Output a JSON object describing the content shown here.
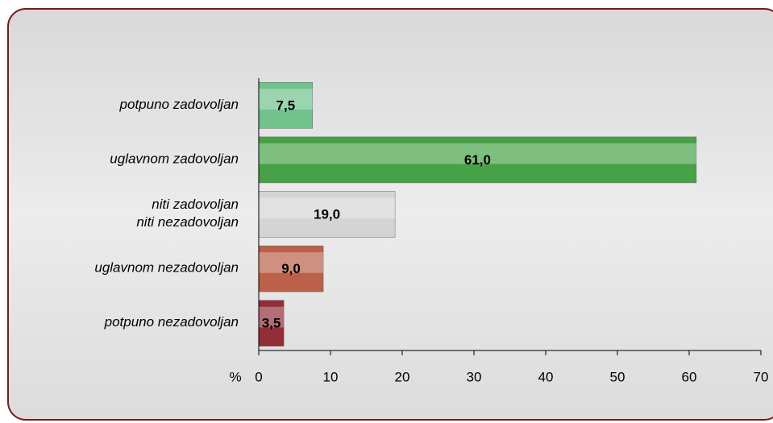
{
  "chart_data": {
    "type": "bar",
    "orientation": "horizontal",
    "categories": [
      "potpuno zadovoljan",
      "uglavnom zadovoljan",
      "niti zadovoljan\nniti nezadovoljan",
      "uglavnom nezadovoljan",
      "potpuno nezadovoljan"
    ],
    "values": [
      7.5,
      61.0,
      19.0,
      9.0,
      3.5
    ],
    "value_labels": [
      "7,5",
      "61,0",
      "19,0",
      "9,0",
      "3,5"
    ],
    "colors": [
      "#72c28e",
      "#47a247",
      "#d4d4d4",
      "#bb6049",
      "#922e38"
    ],
    "xlabel": "%",
    "xlim": [
      0,
      70
    ],
    "xticks": [
      0,
      10,
      20,
      30,
      40,
      50,
      60,
      70
    ]
  }
}
